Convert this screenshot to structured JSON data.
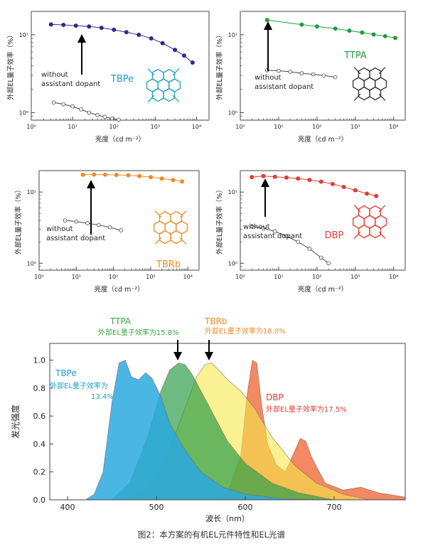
{
  "caption": "图2：本方案的有机EL元件特性和EL光谱",
  "common": {
    "eqe_ylabel": "外部EL量子效率（%）",
    "lum_xlabel": "亮度（cd m⁻²）",
    "without_line1": "without",
    "without_line2": "assistant dopant",
    "x_tick_labels": [
      "10⁰",
      "10¹",
      "10²",
      "10³",
      "10⁴"
    ],
    "y_tick_labels": [
      "10⁰",
      "10¹"
    ]
  },
  "chart_data": [
    {
      "type": "scatter",
      "panel": "TBPe",
      "label": "TBPe",
      "color": "#2e2a8c",
      "label_color": "#1aa0c8",
      "molecule_color": "#1aa0c8",
      "xscale": "log",
      "yscale": "log",
      "xlim": [
        1,
        20000
      ],
      "ylim": [
        0.8,
        20
      ],
      "series": [
        {
          "style": "filled",
          "x": [
            3,
            6,
            12,
            25,
            50,
            100,
            200,
            400,
            800,
            1500,
            3000,
            5000,
            8000
          ],
          "y": [
            13.6,
            13.4,
            13.1,
            12.8,
            12.3,
            11.6,
            10.8,
            10.0,
            9.0,
            7.8,
            6.4,
            5.4,
            4.4
          ]
        },
        {
          "style": "open",
          "x": [
            3.5,
            6,
            10,
            16,
            25,
            40,
            60,
            90,
            130
          ],
          "y": [
            1.35,
            1.28,
            1.2,
            1.1,
            1.0,
            0.93,
            0.88,
            0.84,
            0.81
          ]
        }
      ]
    },
    {
      "type": "scatter",
      "panel": "TTPA",
      "label": "TTPA",
      "color": "#1f9e3f",
      "label_color": "#1f9e3f",
      "molecule_color": "#333333",
      "xscale": "log",
      "yscale": "log",
      "xlim": [
        1,
        20000
      ],
      "ylim": [
        0.8,
        20
      ],
      "series": [
        {
          "style": "filled",
          "x": [
            5,
            40,
            100,
            300,
            700,
            1500,
            3000,
            6000,
            11000
          ],
          "y": [
            15.5,
            13.5,
            12.8,
            12.0,
            11.3,
            10.7,
            10.1,
            9.6,
            9.1
          ]
        },
        {
          "style": "open",
          "x": [
            5,
            10,
            20,
            40,
            80,
            150,
            300
          ],
          "y": [
            3.5,
            3.45,
            3.35,
            3.2,
            3.1,
            3.0,
            2.85
          ]
        }
      ]
    },
    {
      "type": "scatter",
      "panel": "TBRb",
      "label": "TBRb",
      "color": "#ef8a22",
      "label_color": "#ef8a22",
      "molecule_color": "#ef8a22",
      "xscale": "log",
      "yscale": "log",
      "xlim": [
        1,
        20000
      ],
      "ylim": [
        0.8,
        20
      ],
      "series": [
        {
          "style": "filled",
          "x": [
            15,
            30,
            60,
            120,
            250,
            500,
            1000,
            2000,
            4000,
            7000
          ],
          "y": [
            17.5,
            17.6,
            17.5,
            17.4,
            17.2,
            16.8,
            16.2,
            15.5,
            14.8,
            14.1
          ]
        },
        {
          "style": "open",
          "x": [
            5,
            10,
            20,
            40,
            80,
            160
          ],
          "y": [
            4.0,
            3.85,
            3.65,
            3.45,
            3.2,
            2.9
          ]
        }
      ]
    },
    {
      "type": "scatter",
      "panel": "DBP",
      "label": "DBP",
      "color": "#e23b2e",
      "label_color": "#e23b2e",
      "molecule_color": "#e23b2e",
      "xscale": "log",
      "yscale": "log",
      "xlim": [
        1,
        20000
      ],
      "ylim": [
        0.8,
        20
      ],
      "series": [
        {
          "style": "filled",
          "x": [
            2,
            4,
            8,
            16,
            32,
            64,
            128,
            256,
            500,
            1000,
            2000,
            3500
          ],
          "y": [
            16.2,
            16.8,
            16.4,
            16.0,
            15.5,
            14.8,
            14.0,
            13.0,
            11.8,
            10.6,
            9.5,
            8.8
          ]
        },
        {
          "style": "open",
          "x": [
            2,
            4,
            8,
            16,
            32,
            64,
            128,
            200
          ],
          "y": [
            3.3,
            3.1,
            2.8,
            2.4,
            2.0,
            1.6,
            1.2,
            1.0
          ]
        }
      ]
    },
    {
      "type": "area",
      "panel": "spectrum",
      "xlabel": "波长（nm）",
      "ylabel": "发光强度",
      "xlim": [
        380,
        780
      ],
      "ylim": [
        0,
        1.12
      ],
      "x_ticks": [
        400,
        500,
        600,
        700
      ],
      "y_ticks": [
        0.0,
        0.2,
        0.4,
        0.6,
        0.8,
        1.0
      ],
      "series": [
        {
          "name": "TBPe",
          "color": "#2aa9df",
          "x": [
            420,
            430,
            440,
            450,
            458,
            465,
            472,
            480,
            488,
            495,
            505,
            515,
            530,
            550,
            575,
            600,
            640,
            680
          ],
          "y": [
            0,
            0.04,
            0.2,
            0.7,
            0.98,
            1.0,
            0.88,
            0.86,
            0.91,
            0.87,
            0.74,
            0.55,
            0.38,
            0.2,
            0.09,
            0.04,
            0.01,
            0
          ]
        },
        {
          "name": "TTPA",
          "color": "#2f9e4a",
          "x": [
            450,
            470,
            490,
            505,
            515,
            525,
            532,
            540,
            550,
            565,
            580,
            600,
            630,
            660,
            700
          ],
          "y": [
            0,
            0.12,
            0.45,
            0.78,
            0.93,
            0.98,
            0.97,
            0.9,
            0.78,
            0.6,
            0.42,
            0.26,
            0.12,
            0.05,
            0
          ]
        },
        {
          "name": "TBRb",
          "color": "#f5e74a",
          "x": [
            470,
            490,
            510,
            530,
            545,
            555,
            562,
            570,
            580,
            595,
            610,
            630,
            655,
            680,
            710,
            740
          ],
          "y": [
            0,
            0.07,
            0.28,
            0.62,
            0.88,
            0.97,
            0.98,
            0.93,
            0.86,
            0.78,
            0.66,
            0.45,
            0.25,
            0.12,
            0.04,
            0
          ]
        },
        {
          "name": "DBP",
          "color": "#ef6b3b",
          "x": [
            560,
            580,
            595,
            602,
            608,
            613,
            618,
            625,
            635,
            645,
            655,
            662,
            668,
            675,
            690,
            710,
            730,
            750,
            780
          ],
          "y": [
            0,
            0.05,
            0.32,
            0.75,
            1.0,
            0.98,
            0.7,
            0.4,
            0.25,
            0.2,
            0.34,
            0.44,
            0.42,
            0.3,
            0.12,
            0.07,
            0.09,
            0.05,
            0.02
          ]
        }
      ],
      "annotations": [
        {
          "name": "TBPe",
          "title": "TBPe",
          "text": "外部EL量子效率为",
          "value": "13.4%",
          "color": "#1aa0c8"
        },
        {
          "name": "TTPA",
          "title": "TTPA",
          "text": "外部EL量子效率为15.8%",
          "color": "#3aa83f"
        },
        {
          "name": "TBRb",
          "title": "TBRb",
          "text": "外部EL量子效率为18.0%",
          "color": "#ef8a22"
        },
        {
          "name": "DBP",
          "title": "DBP",
          "text": "外部EL量子效率为17.5%",
          "color": "#e23b2e"
        }
      ]
    }
  ]
}
